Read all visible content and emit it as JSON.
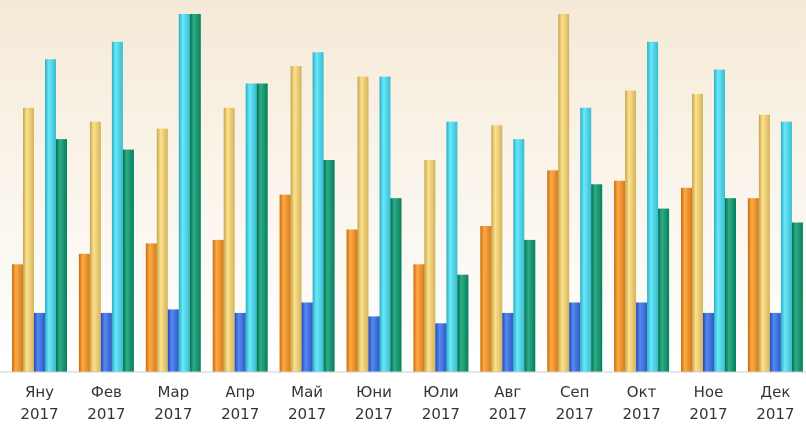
{
  "chart_data": {
    "type": "bar",
    "categories": [
      {
        "month": "Яну",
        "year": "2017"
      },
      {
        "month": "Фев",
        "year": "2017"
      },
      {
        "month": "Мар",
        "year": "2017"
      },
      {
        "month": "Апр",
        "year": "2017"
      },
      {
        "month": "Май",
        "year": "2017"
      },
      {
        "month": "Юни",
        "year": "2017"
      },
      {
        "month": "Юли",
        "year": "2017"
      },
      {
        "month": "Авг",
        "year": "2017"
      },
      {
        "month": "Сеп",
        "year": "2017"
      },
      {
        "month": "Окт",
        "year": "2017"
      },
      {
        "month": "Ное",
        "year": "2017"
      },
      {
        "month": "Дек",
        "year": "2017"
      }
    ],
    "series": [
      {
        "color": "#e8902e",
        "values": [
          31,
          34,
          37,
          38,
          51,
          41,
          31,
          42,
          58,
          55,
          53,
          50
        ]
      },
      {
        "color": "#e6c872",
        "values": [
          76,
          72,
          70,
          76,
          88,
          85,
          61,
          71,
          103,
          81,
          80,
          74
        ]
      },
      {
        "color": "#3f6fd8",
        "values": [
          17,
          17,
          18,
          17,
          20,
          16,
          14,
          17,
          20,
          20,
          17,
          17
        ]
      },
      {
        "color": "#4fd0e2",
        "values": [
          90,
          95,
          103,
          83,
          92,
          85,
          72,
          67,
          76,
          95,
          87,
          72
        ]
      },
      {
        "color": "#17936f",
        "values": [
          67,
          64,
          103,
          83,
          61,
          50,
          28,
          38,
          54,
          47,
          50,
          43
        ]
      }
    ],
    "title": "",
    "xlabel": "",
    "ylabel": "",
    "ylim": [
      0,
      103
    ],
    "grid": false,
    "legend": "none",
    "background_top": "#f5ead7",
    "baseline_color": "#cccccc"
  }
}
